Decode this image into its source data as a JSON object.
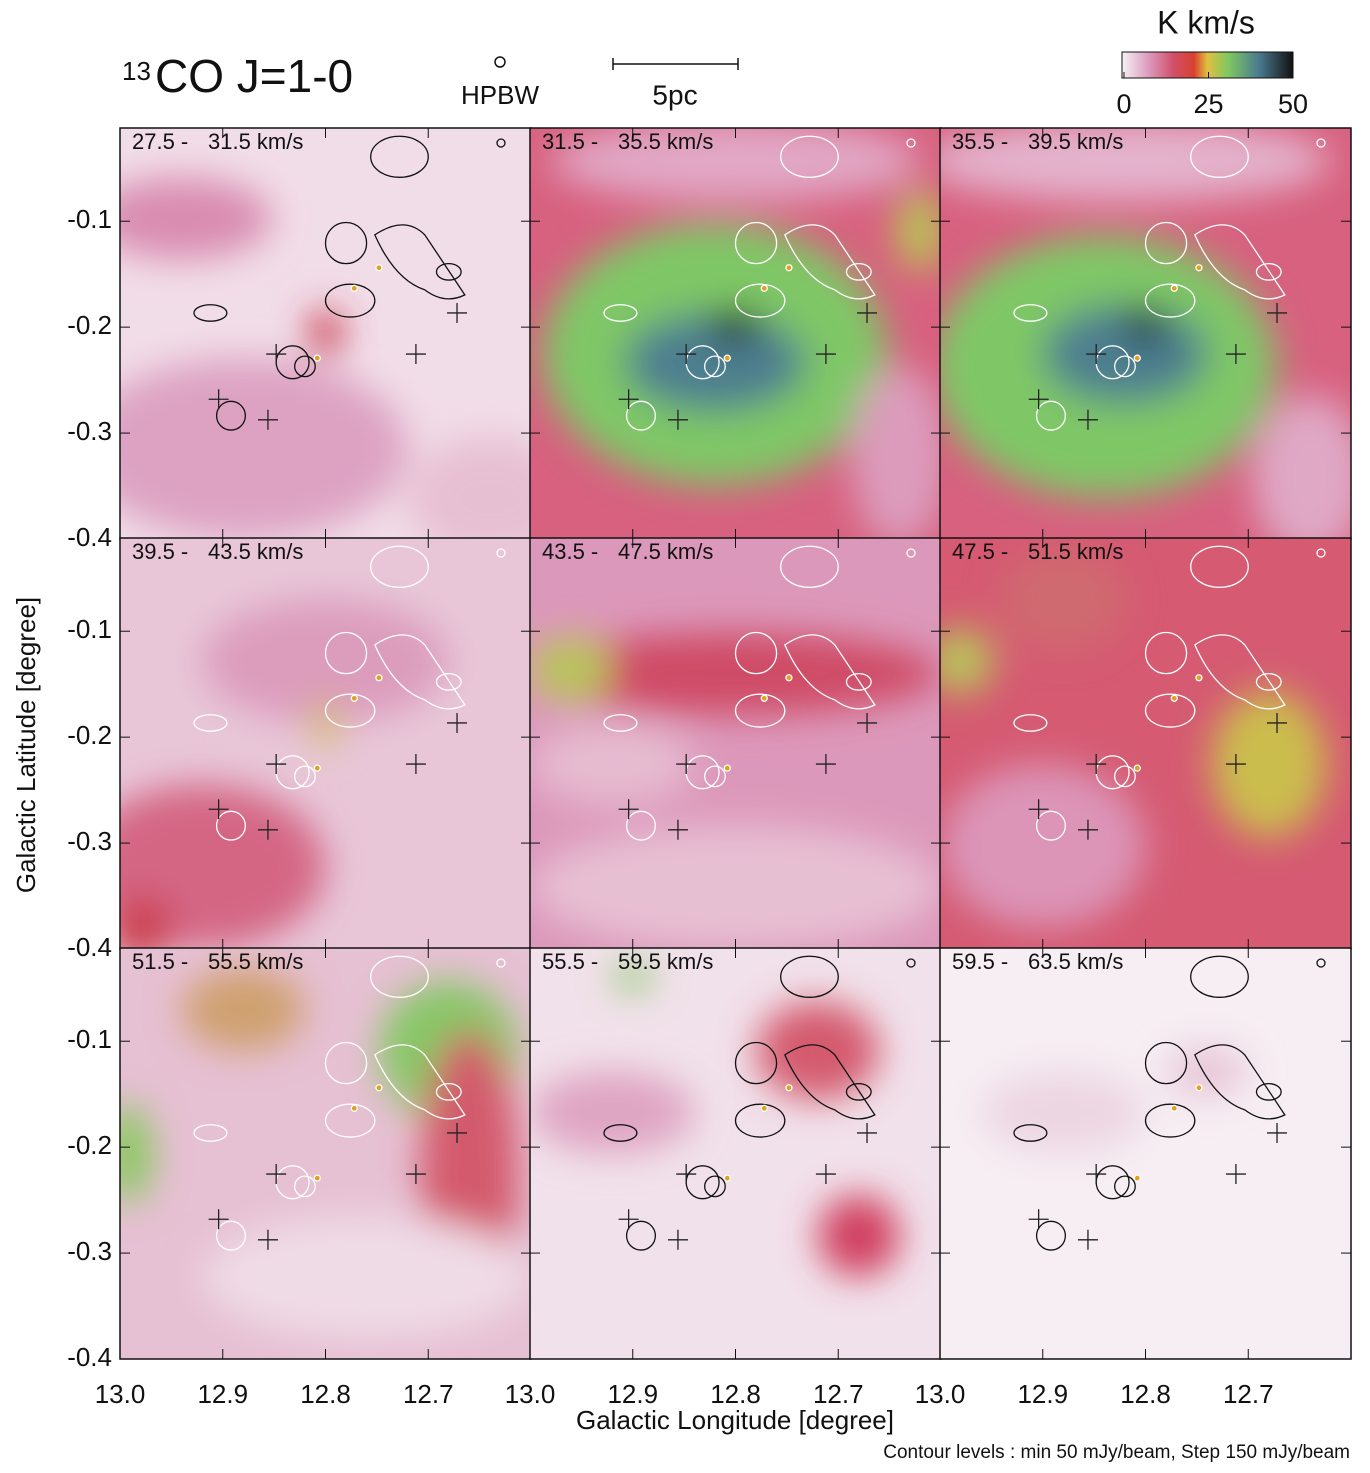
{
  "chart_data": {
    "type": "channel_map",
    "title_sup": "13",
    "title": "CO J=1-0",
    "beam_label": "HPBW",
    "scale_label": "5pc",
    "colorbar": {
      "label": "K km/s",
      "lim": [
        0,
        50
      ],
      "ticks": [
        0,
        25,
        50
      ]
    },
    "xlabel": "Galactic Longitude [degree]",
    "ylabel": "Galactic Latitude [degree]",
    "note": "Contour levels : min 50 mJy/beam, Step 150 mJy/beam",
    "xlim": [
      13.0,
      12.6
    ],
    "xticks": [
      {
        "value": 13.0,
        "label": "13.0"
      },
      12.9,
      12.8,
      12.7
    ],
    "ylim": [
      -0.4,
      -0.012
    ],
    "yticks": [
      -0.1,
      -0.2,
      -0.3,
      -0.4
    ],
    "panels": [
      {
        "range_start": "27.5 -",
        "range_end": "31.5 km/s"
      },
      {
        "range_start": "31.5 -",
        "range_end": "35.5 km/s"
      },
      {
        "range_start": "35.5 -",
        "range_end": "39.5 km/s"
      },
      {
        "range_start": "39.5 -",
        "range_end": "43.5 km/s"
      },
      {
        "range_start": "43.5 -",
        "range_end": "47.5 km/s"
      },
      {
        "range_start": "47.5 -",
        "range_end": "51.5 km/s"
      },
      {
        "range_start": "51.5 -",
        "range_end": "55.5 km/s"
      },
      {
        "range_start": "55.5 -",
        "range_end": "59.5 km/s"
      },
      {
        "range_start": "59.5 -",
        "range_end": "63.5 km/s"
      }
    ]
  }
}
